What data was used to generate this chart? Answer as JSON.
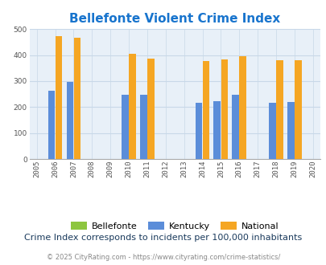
{
  "title": "Bellefonte Violent Crime Index",
  "years": [
    2005,
    2006,
    2007,
    2008,
    2009,
    2010,
    2011,
    2012,
    2013,
    2014,
    2015,
    2016,
    2017,
    2018,
    2019,
    2020
  ],
  "bellefonte": [
    0,
    0,
    0,
    0,
    0,
    0,
    0,
    0,
    0,
    0,
    0,
    0,
    0,
    0,
    0,
    0
  ],
  "kentucky": [
    0,
    263,
    298,
    0,
    0,
    248,
    247,
    0,
    0,
    215,
    222,
    248,
    0,
    215,
    220,
    0
  ],
  "national": [
    0,
    474,
    467,
    0,
    0,
    405,
    387,
    0,
    0,
    376,
    383,
    397,
    0,
    379,
    379,
    0
  ],
  "bar_width": 0.38,
  "bar_gap": 0.02,
  "ylim": [
    0,
    500
  ],
  "yticks": [
    0,
    100,
    200,
    300,
    400,
    500
  ],
  "color_bellefonte": "#8dc63f",
  "color_kentucky": "#5b8dd9",
  "color_national": "#f5a623",
  "bg_color": "#e8f0f8",
  "grid_color": "#c8d8e8",
  "title_color": "#1874cd",
  "legend_labels": [
    "Bellefonte",
    "Kentucky",
    "National"
  ],
  "note_text": "Crime Index corresponds to incidents per 100,000 inhabitants",
  "footer_text": "© 2025 CityRating.com - https://www.cityrating.com/crime-statistics/",
  "title_fontsize": 11,
  "axis_fontsize": 6.5,
  "legend_fontsize": 8,
  "note_fontsize": 8
}
